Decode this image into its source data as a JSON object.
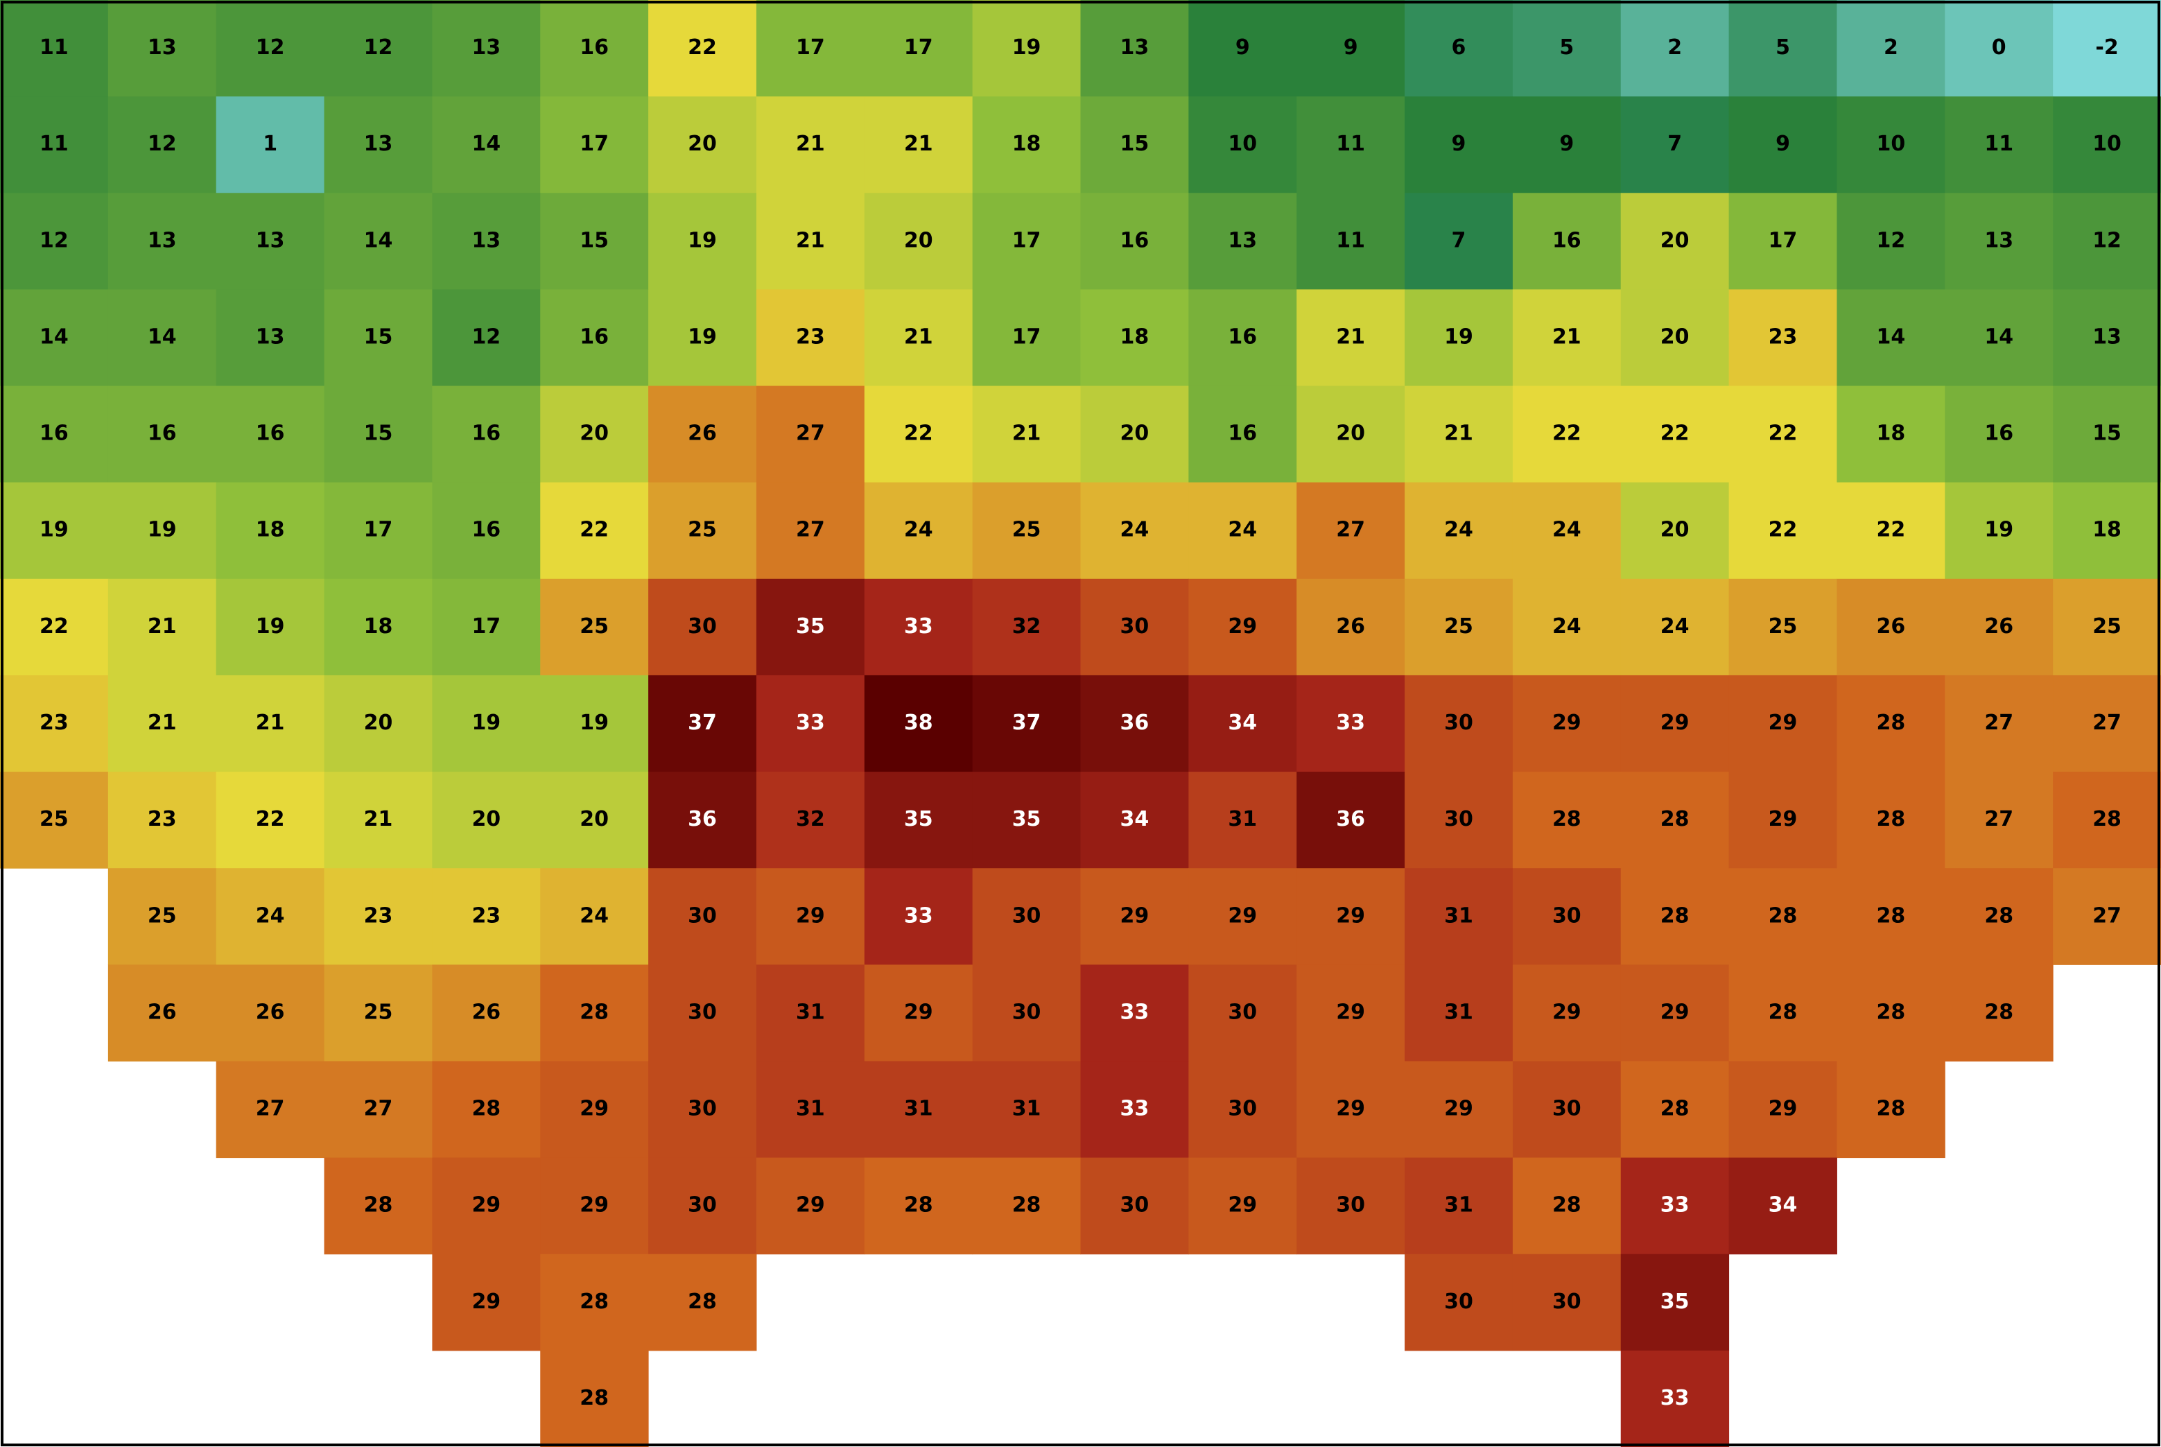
{
  "map": {
    "grid": [
      [
        11,
        13,
        12,
        12,
        13,
        16,
        22,
        17,
        17,
        19,
        13,
        9,
        9,
        6,
        5,
        2,
        5,
        2,
        0,
        -2
      ],
      [
        11,
        12,
        1,
        13,
        14,
        17,
        20,
        21,
        21,
        18,
        15,
        10,
        11,
        9,
        9,
        7,
        9,
        10,
        11,
        10
      ],
      [
        12,
        13,
        13,
        14,
        13,
        15,
        19,
        21,
        20,
        17,
        16,
        13,
        11,
        7,
        16,
        20,
        17,
        12,
        13,
        12
      ],
      [
        14,
        14,
        13,
        15,
        12,
        16,
        19,
        23,
        21,
        17,
        18,
        16,
        21,
        19,
        21,
        20,
        23,
        14,
        14,
        13
      ],
      [
        16,
        16,
        16,
        15,
        16,
        20,
        26,
        27,
        22,
        21,
        20,
        16,
        20,
        21,
        22,
        22,
        22,
        18,
        16,
        15
      ],
      [
        19,
        19,
        18,
        17,
        16,
        22,
        25,
        27,
        24,
        25,
        24,
        24,
        27,
        24,
        24,
        20,
        22,
        22,
        19,
        18
      ],
      [
        22,
        21,
        19,
        18,
        17,
        25,
        30,
        35,
        33,
        32,
        30,
        29,
        26,
        25,
        24,
        24,
        25,
        26,
        26,
        25
      ],
      [
        23,
        21,
        21,
        20,
        19,
        19,
        37,
        33,
        38,
        37,
        36,
        34,
        33,
        30,
        29,
        29,
        29,
        28,
        27,
        27
      ],
      [
        25,
        23,
        22,
        21,
        20,
        20,
        36,
        32,
        35,
        35,
        34,
        31,
        36,
        30,
        28,
        28,
        29,
        28,
        27,
        28
      ],
      [
        null,
        25,
        24,
        23,
        23,
        24,
        30,
        29,
        33,
        30,
        29,
        29,
        29,
        31,
        30,
        28,
        28,
        28,
        28,
        27
      ],
      [
        null,
        26,
        26,
        25,
        26,
        28,
        30,
        31,
        29,
        30,
        33,
        30,
        29,
        31,
        29,
        29,
        28,
        28,
        28,
        null
      ],
      [
        null,
        null,
        27,
        27,
        28,
        29,
        30,
        31,
        31,
        31,
        33,
        30,
        29,
        29,
        30,
        28,
        29,
        28,
        null,
        null
      ],
      [
        null,
        null,
        null,
        28,
        29,
        29,
        30,
        29,
        28,
        28,
        30,
        29,
        30,
        31,
        28,
        33,
        34,
        null,
        null,
        null
      ],
      [
        null,
        null,
        null,
        null,
        29,
        28,
        28,
        null,
        null,
        null,
        null,
        null,
        null,
        30,
        30,
        35,
        null,
        null,
        null,
        null
      ],
      [
        null,
        null,
        null,
        null,
        null,
        28,
        null,
        null,
        null,
        null,
        null,
        null,
        null,
        null,
        null,
        33,
        null,
        null,
        null,
        null
      ]
    ]
  }
}
